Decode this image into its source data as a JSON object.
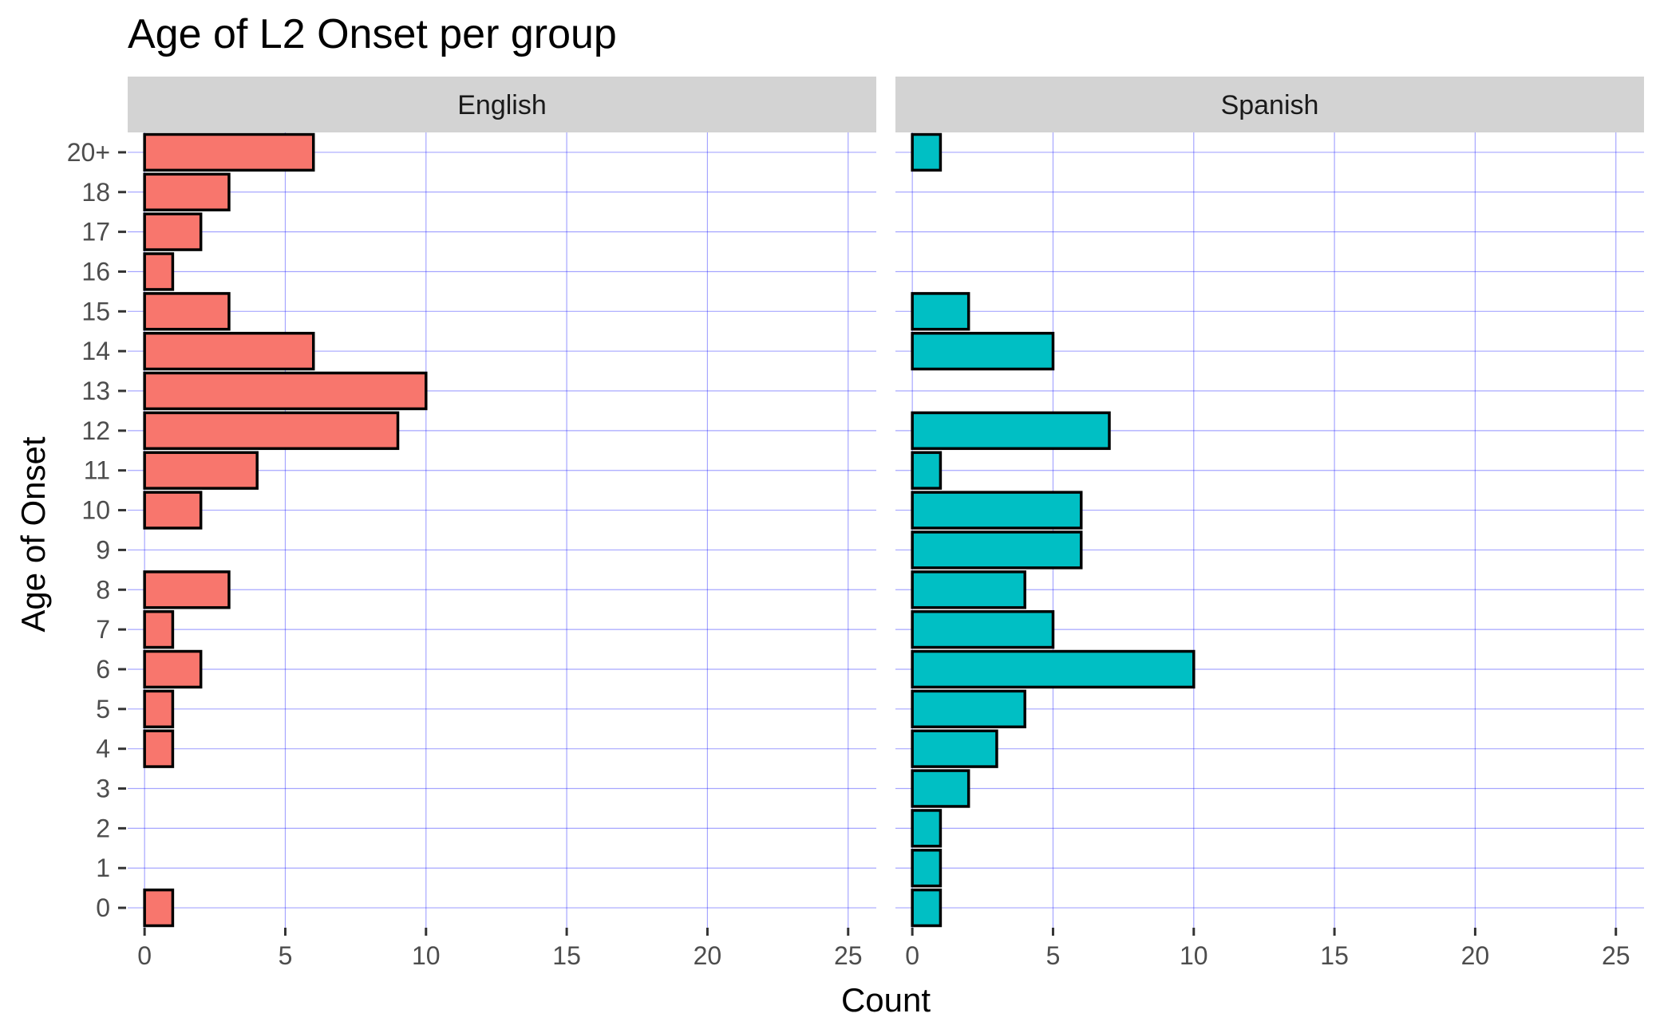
{
  "chart_data": {
    "type": "bar",
    "orientation": "horizontal",
    "title": "Age of L2 Onset per group",
    "xlabel": "Count",
    "ylabel": "Age of Onset",
    "xlim": [
      0,
      26
    ],
    "x_ticks": [
      0,
      5,
      10,
      15,
      20,
      25
    ],
    "categories": [
      "0",
      "1",
      "2",
      "3",
      "4",
      "5",
      "6",
      "7",
      "8",
      "9",
      "10",
      "11",
      "12",
      "13",
      "14",
      "15",
      "16",
      "17",
      "18",
      "20+"
    ],
    "grid": true,
    "legend": "none",
    "facets": [
      {
        "name": "English",
        "color": "#F8766D",
        "values": [
          1,
          0,
          0,
          0,
          1,
          1,
          2,
          1,
          3,
          0,
          2,
          4,
          9,
          10,
          6,
          3,
          1,
          2,
          3,
          6
        ]
      },
      {
        "name": "Spanish",
        "color": "#00BFC4",
        "values": [
          1,
          1,
          1,
          2,
          3,
          4,
          10,
          5,
          4,
          6,
          6,
          1,
          7,
          0,
          5,
          2,
          0,
          0,
          0,
          1
        ]
      }
    ]
  }
}
